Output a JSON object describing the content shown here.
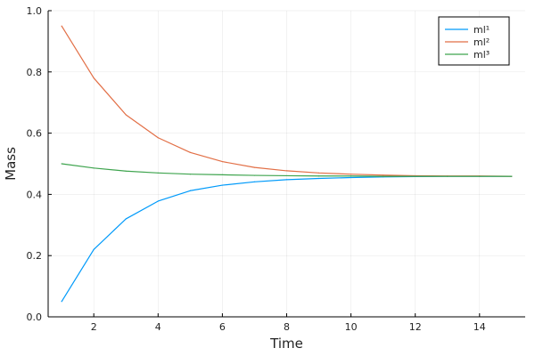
{
  "chart_data": {
    "type": "line",
    "title": "",
    "xlabel": "Time",
    "ylabel": "Mass",
    "xlim": [
      0.58,
      15.42
    ],
    "ylim": [
      0,
      1
    ],
    "xticks": [
      2,
      4,
      6,
      8,
      10,
      12,
      14
    ],
    "yticks": [
      0.0,
      0.2,
      0.4,
      0.6,
      0.8,
      1.0
    ],
    "ytick_labels": [
      "0.0",
      "0.2",
      "0.4",
      "0.6",
      "0.8",
      "1.0"
    ],
    "grid": true,
    "legend_position": "top-right",
    "x": [
      1,
      2,
      3,
      4,
      5,
      6,
      7,
      8,
      9,
      10,
      11,
      12,
      13,
      14,
      15
    ],
    "series": [
      {
        "name": "ml¹",
        "color": "#009AFA",
        "values": [
          0.05,
          0.22,
          0.32,
          0.378,
          0.412,
          0.43,
          0.441,
          0.448,
          0.452,
          0.455,
          0.457,
          0.458,
          0.459,
          0.459,
          0.459
        ]
      },
      {
        "name": "ml²",
        "color": "#E26F46",
        "values": [
          0.95,
          0.78,
          0.66,
          0.585,
          0.537,
          0.507,
          0.488,
          0.477,
          0.47,
          0.466,
          0.463,
          0.461,
          0.46,
          0.46,
          0.459
        ]
      },
      {
        "name": "ml³",
        "color": "#3EA44E",
        "values": [
          0.5,
          0.486,
          0.476,
          0.47,
          0.466,
          0.464,
          0.462,
          0.461,
          0.46,
          0.46,
          0.459,
          0.459,
          0.459,
          0.459,
          0.459
        ]
      }
    ]
  }
}
